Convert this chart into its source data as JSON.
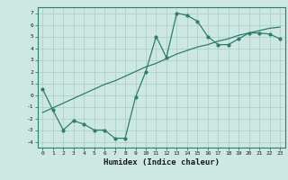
{
  "x": [
    0,
    1,
    2,
    3,
    4,
    5,
    6,
    7,
    8,
    9,
    10,
    11,
    12,
    13,
    14,
    15,
    16,
    17,
    18,
    19,
    20,
    21,
    22,
    23
  ],
  "y_curve": [
    0.5,
    -1.3,
    -3.0,
    -2.2,
    -2.5,
    -3.0,
    -3.0,
    -3.7,
    -3.7,
    -0.2,
    2.0,
    5.0,
    3.2,
    7.0,
    6.8,
    6.3,
    5.0,
    4.3,
    4.3,
    4.8,
    5.3,
    5.3,
    5.2,
    4.8
  ],
  "y_linear": [
    -1.5,
    -1.1,
    -0.7,
    -0.3,
    0.1,
    0.5,
    0.9,
    1.2,
    1.6,
    2.0,
    2.4,
    2.7,
    3.1,
    3.5,
    3.8,
    4.1,
    4.3,
    4.6,
    4.8,
    5.1,
    5.3,
    5.5,
    5.7,
    5.8
  ],
  "color": "#2e7d6e",
  "bg_color": "#cde8e2",
  "grid_color": "#afd0ca",
  "xlabel": "Humidex (Indice chaleur)",
  "xlim": [
    -0.5,
    23.5
  ],
  "ylim": [
    -4.5,
    7.5
  ],
  "yticks": [
    -4,
    -3,
    -2,
    -1,
    0,
    1,
    2,
    3,
    4,
    5,
    6,
    7
  ],
  "xticks": [
    0,
    1,
    2,
    3,
    4,
    5,
    6,
    7,
    8,
    9,
    10,
    11,
    12,
    13,
    14,
    15,
    16,
    17,
    18,
    19,
    20,
    21,
    22,
    23
  ]
}
